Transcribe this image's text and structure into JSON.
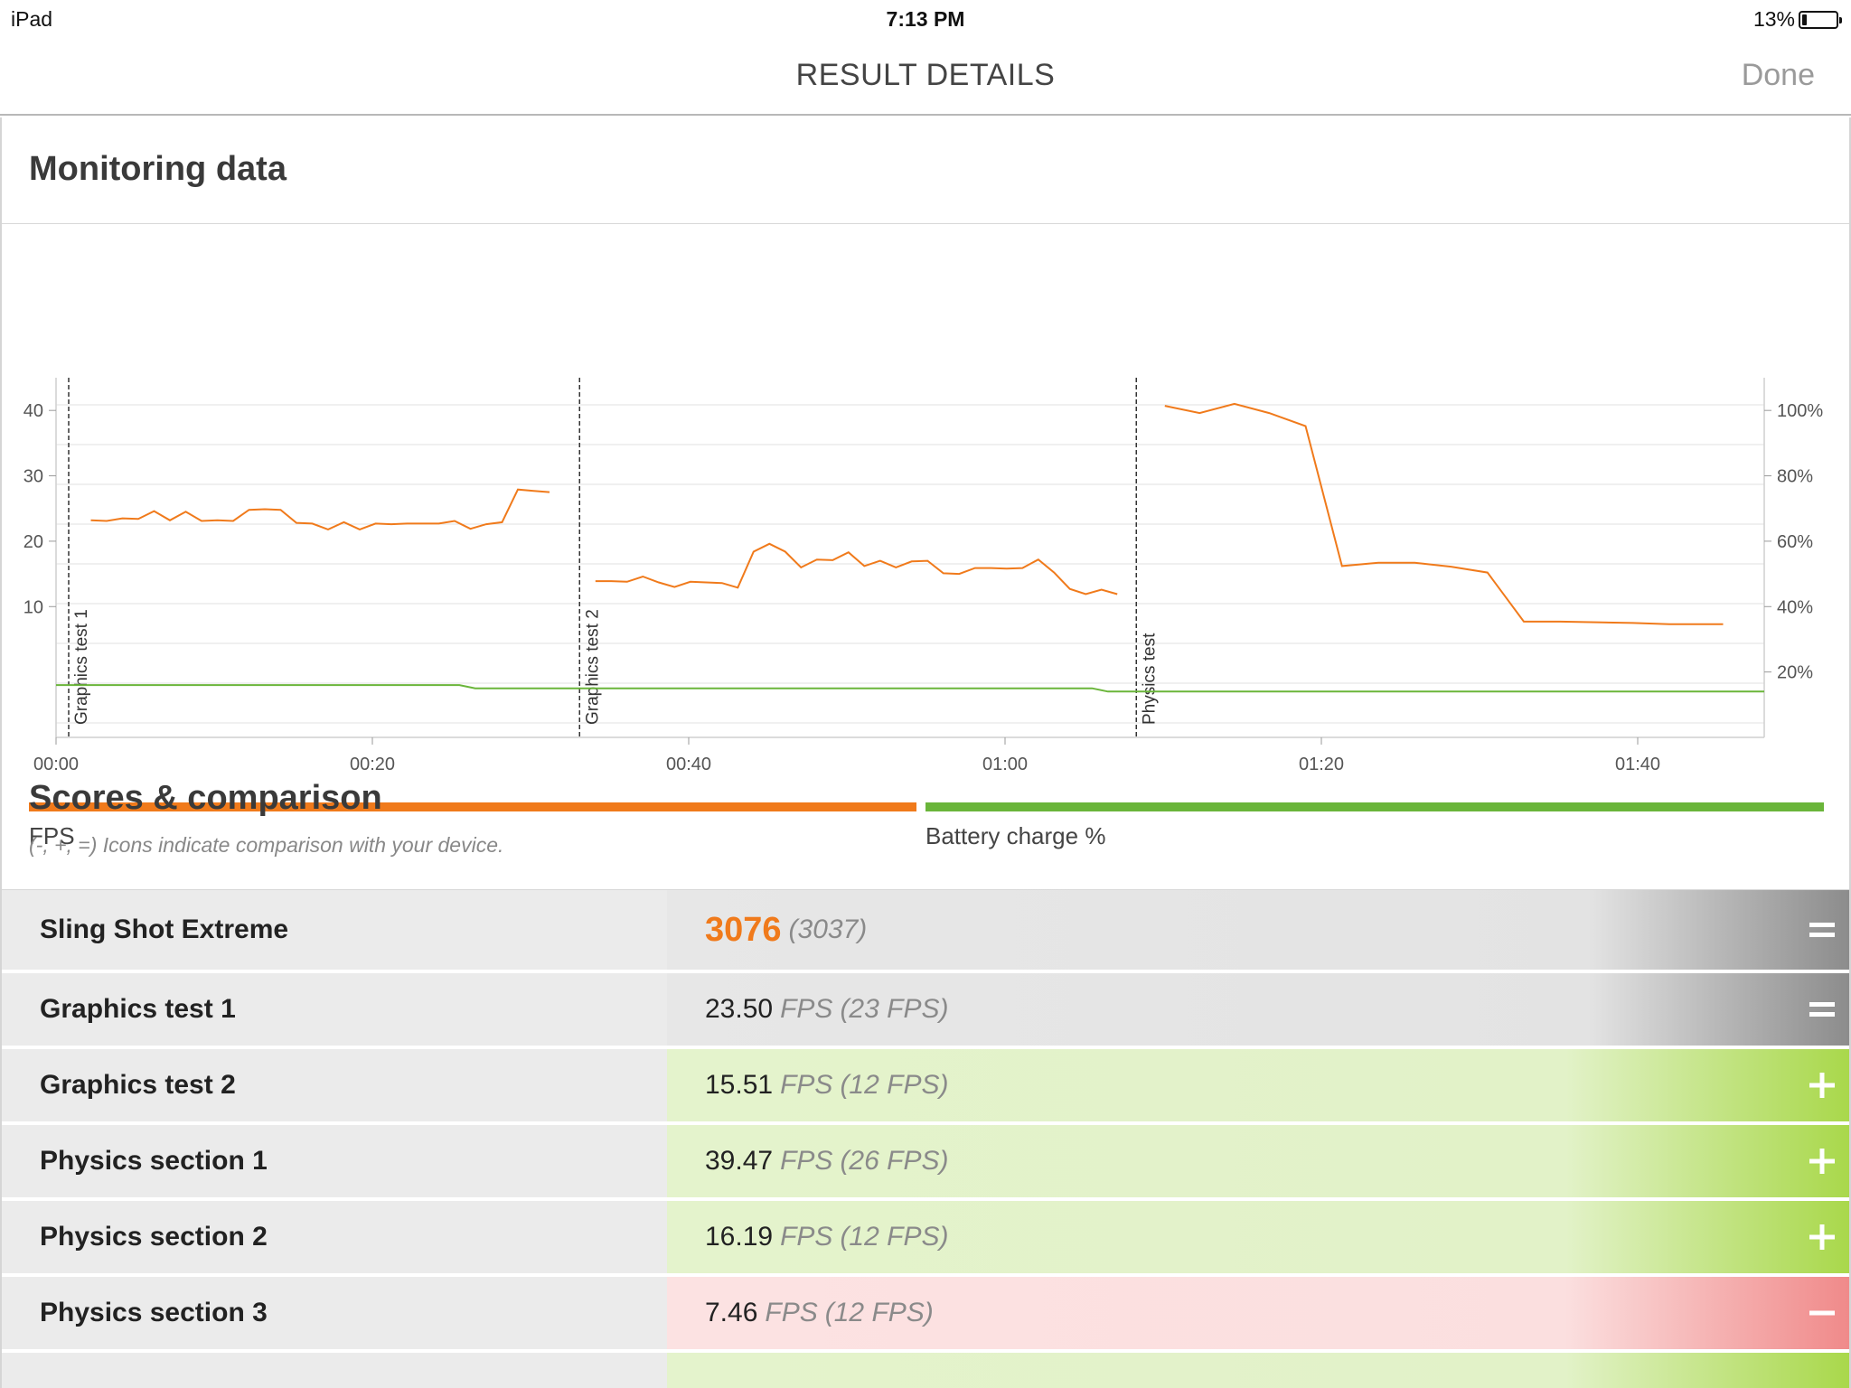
{
  "status_bar": {
    "device": "iPad",
    "time": "7:13 PM",
    "battery": "13%",
    "battery_level": 0.13
  },
  "nav": {
    "title": "RESULT DETAILS",
    "done_label": "Done"
  },
  "monitoring": {
    "title": "Monitoring data"
  },
  "chart_data": {
    "type": "line",
    "x_unit": "seconds",
    "x_ticks": [
      "00:00",
      "00:20",
      "00:40",
      "01:00",
      "01:20",
      "01:40"
    ],
    "x_tick_values": [
      0,
      20,
      40,
      60,
      80,
      100
    ],
    "xlim": [
      0,
      108
    ],
    "y_left_ticks": [
      10,
      20,
      30,
      40
    ],
    "ylim_left": [
      -10,
      45
    ],
    "y_right_ticks": [
      "20%",
      "40%",
      "60%",
      "80%",
      "100%"
    ],
    "y_right_tick_values": [
      20,
      40,
      60,
      80,
      100
    ],
    "ylim_right": [
      0,
      110
    ],
    "markers": [
      {
        "label": "Graphics test 1",
        "x": 0.8
      },
      {
        "label": "Graphics test 2",
        "x": 33.1
      },
      {
        "label": "Physics test",
        "x": 68.3
      }
    ],
    "series": [
      {
        "name": "FPS",
        "color": "#f07a1b",
        "segments": [
          [
            [
              2.2,
              23.2
            ],
            [
              3.2,
              23.1
            ],
            [
              4.2,
              23.5
            ],
            [
              5.2,
              23.4
            ],
            [
              6.2,
              24.6
            ],
            [
              7.2,
              23.2
            ],
            [
              8.2,
              24.5
            ],
            [
              9.2,
              23.1
            ],
            [
              10.2,
              23.2
            ],
            [
              11.2,
              23.1
            ],
            [
              12.2,
              24.8
            ],
            [
              13.2,
              24.9
            ],
            [
              14.2,
              24.8
            ],
            [
              15.2,
              22.8
            ],
            [
              16.2,
              22.7
            ],
            [
              17.2,
              21.8
            ],
            [
              18.2,
              22.9
            ],
            [
              19.2,
              21.8
            ],
            [
              20.2,
              22.7
            ],
            [
              21.2,
              22.6
            ],
            [
              22.2,
              22.7
            ],
            [
              23.2,
              22.7
            ],
            [
              24.2,
              22.7
            ],
            [
              25.2,
              23.1
            ],
            [
              26.2,
              21.9
            ],
            [
              27.2,
              22.6
            ],
            [
              28.2,
              22.9
            ],
            [
              29.2,
              27.9
            ],
            [
              30.2,
              27.7
            ],
            [
              31.2,
              27.5
            ]
          ],
          [
            [
              34.1,
              13.9
            ],
            [
              35.1,
              13.9
            ],
            [
              36.1,
              13.8
            ],
            [
              37.1,
              14.6
            ],
            [
              38.1,
              13.7
            ],
            [
              39.1,
              13.0
            ],
            [
              40.1,
              13.8
            ],
            [
              41.1,
              13.7
            ],
            [
              42.1,
              13.6
            ],
            [
              43.1,
              12.9
            ],
            [
              44.1,
              18.4
            ],
            [
              45.1,
              19.6
            ],
            [
              46.1,
              18.4
            ],
            [
              47.1,
              16.0
            ],
            [
              48.1,
              17.2
            ],
            [
              49.1,
              17.1
            ],
            [
              50.1,
              18.3
            ],
            [
              51.1,
              16.2
            ],
            [
              52.1,
              17.0
            ],
            [
              53.1,
              16.0
            ],
            [
              54.1,
              16.9
            ],
            [
              55.1,
              17.0
            ],
            [
              56.1,
              15.1
            ],
            [
              57.1,
              15.0
            ],
            [
              58.1,
              15.9
            ],
            [
              59.1,
              15.9
            ],
            [
              60.1,
              15.8
            ],
            [
              61.1,
              15.9
            ],
            [
              62.1,
              17.2
            ],
            [
              63.1,
              15.2
            ],
            [
              64.1,
              12.7
            ],
            [
              65.1,
              11.9
            ],
            [
              66.1,
              12.6
            ],
            [
              67.1,
              11.9
            ]
          ],
          [
            [
              70.1,
              40.7
            ],
            [
              72.3,
              39.6
            ],
            [
              74.5,
              41.0
            ],
            [
              76.7,
              39.6
            ],
            [
              79.0,
              37.6
            ],
            [
              81.3,
              16.2
            ],
            [
              83.6,
              16.7
            ],
            [
              85.9,
              16.7
            ],
            [
              88.2,
              16.1
            ],
            [
              90.5,
              15.2
            ],
            [
              92.8,
              7.7
            ],
            [
              95.1,
              7.7
            ],
            [
              97.4,
              7.6
            ],
            [
              99.7,
              7.5
            ],
            [
              102.0,
              7.3
            ],
            [
              104.3,
              7.3
            ],
            [
              105.4,
              7.3
            ]
          ]
        ]
      },
      {
        "name": "Battery charge %",
        "color": "#6ab53a",
        "points": [
          [
            0,
            16
          ],
          [
            25.5,
            16
          ],
          [
            26.5,
            15
          ],
          [
            65.5,
            15
          ],
          [
            66.5,
            14
          ],
          [
            108,
            14
          ]
        ]
      }
    ]
  },
  "legend": [
    {
      "label": "FPS",
      "color": "#f07a1b"
    },
    {
      "label": "Battery charge %",
      "color": "#6ab53a"
    }
  ],
  "scores": {
    "title": "Scores & comparison",
    "subtitle": "(-, +, =) Icons indicate comparison with your device.",
    "rows": [
      {
        "name": "Sling Shot Extreme",
        "value": "3076",
        "reference": "(3037)",
        "unit": "",
        "comparison": "equal"
      },
      {
        "name": "Graphics test 1",
        "value": "23.50",
        "unit": "FPS",
        "reference": "(23 FPS)",
        "comparison": "equal"
      },
      {
        "name": "Graphics test 2",
        "value": "15.51",
        "unit": "FPS",
        "reference": "(12 FPS)",
        "comparison": "plus"
      },
      {
        "name": "Physics section 1",
        "value": "39.47",
        "unit": "FPS",
        "reference": "(26 FPS)",
        "comparison": "plus"
      },
      {
        "name": "Physics section 2",
        "value": "16.19",
        "unit": "FPS",
        "reference": "(12 FPS)",
        "comparison": "plus"
      },
      {
        "name": "Physics section 3",
        "value": "7.46",
        "unit": "FPS",
        "reference": "(12 FPS)",
        "comparison": "minus"
      }
    ]
  }
}
